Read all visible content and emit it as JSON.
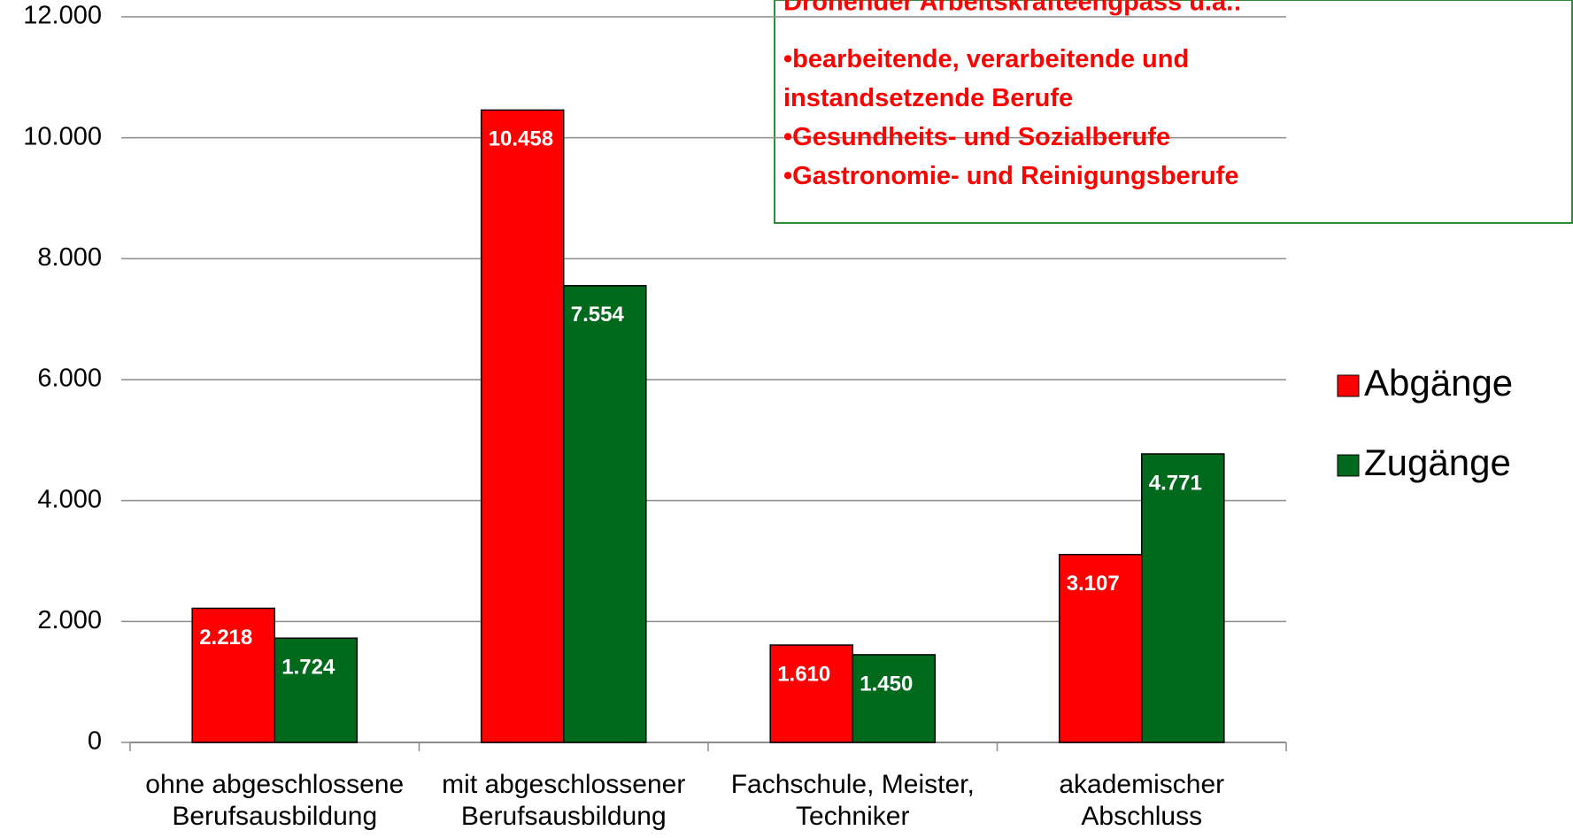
{
  "chart_data": {
    "type": "bar",
    "categories": [
      "ohne abgeschlossene\nBerufsausbildung",
      "mit abgeschlossener\nBerufsausbildung",
      "Fachschule, Meister,\nTechniker",
      "akademischer\nAbschluss"
    ],
    "series": [
      {
        "name": "Abgänge",
        "color": "#ff0000",
        "values": [
          2218,
          10458,
          1610,
          3107
        ],
        "value_labels": [
          "2.218",
          "10.458",
          "1.610",
          "3.107"
        ]
      },
      {
        "name": "Zugänge",
        "color": "#006a1c",
        "values": [
          1724,
          7554,
          1450,
          4771
        ],
        "value_labels": [
          "1.724",
          "7.554",
          "1.450",
          "4.771"
        ]
      }
    ],
    "ylim": [
      0,
      12000
    ],
    "yticks": [
      {
        "value": 0,
        "label": "0"
      },
      {
        "value": 2000,
        "label": "2.000"
      },
      {
        "value": 4000,
        "label": "4.000"
      },
      {
        "value": 6000,
        "label": "6.000"
      },
      {
        "value": 8000,
        "label": "8.000"
      },
      {
        "value": 10000,
        "label": "10.000"
      },
      {
        "value": 12000,
        "label": "12.000"
      }
    ],
    "grid": true,
    "legend": "right",
    "annotation": {
      "title": "Drohender Arbeitskräfteengpass u.a.:",
      "items": [
        "•bearbeitende, verarbeitende und\ninstandsetzende Berufe",
        "•Gesundheits- und Sozialberufe",
        "•Gastronomie- und Reinigungsberufe"
      ]
    }
  }
}
